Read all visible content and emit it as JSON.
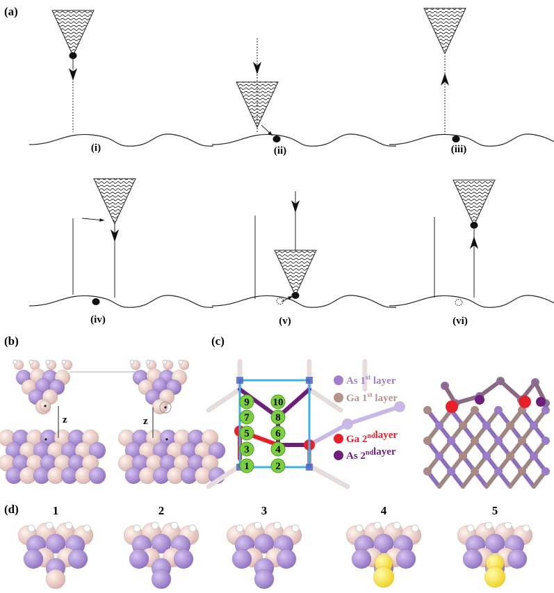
{
  "panels": {
    "a": {
      "label": "(a)",
      "steps": [
        "(i)",
        "(ii)",
        "(iii)",
        "(iv)",
        "(v)",
        "(vi)"
      ]
    },
    "b": {
      "label": "(b)",
      "distance_labels": [
        "z",
        "z"
      ]
    },
    "c": {
      "label": "(c)",
      "sites": [
        "1",
        "2",
        "3",
        "4",
        "5",
        "6",
        "7",
        "8",
        "9",
        "10"
      ],
      "legend": [
        {
          "species": "As",
          "ordinal": "1",
          "suffix": "st",
          "layer": "layer",
          "color": "#a37fc9"
        },
        {
          "species": "Ga",
          "ordinal": "1",
          "suffix": "st",
          "layer": "layer",
          "color": "#b8918a"
        },
        {
          "species": "Ga",
          "ordinal": "2",
          "suffix": "nd",
          "layer": "layer",
          "color": "#e8202a"
        },
        {
          "species": "As",
          "ordinal": "2",
          "suffix": "nd",
          "layer": "layer",
          "color": "#6e1f7a"
        }
      ]
    },
    "d": {
      "label": "(d)",
      "frames": [
        "1",
        "2",
        "3",
        "4",
        "5"
      ]
    }
  }
}
